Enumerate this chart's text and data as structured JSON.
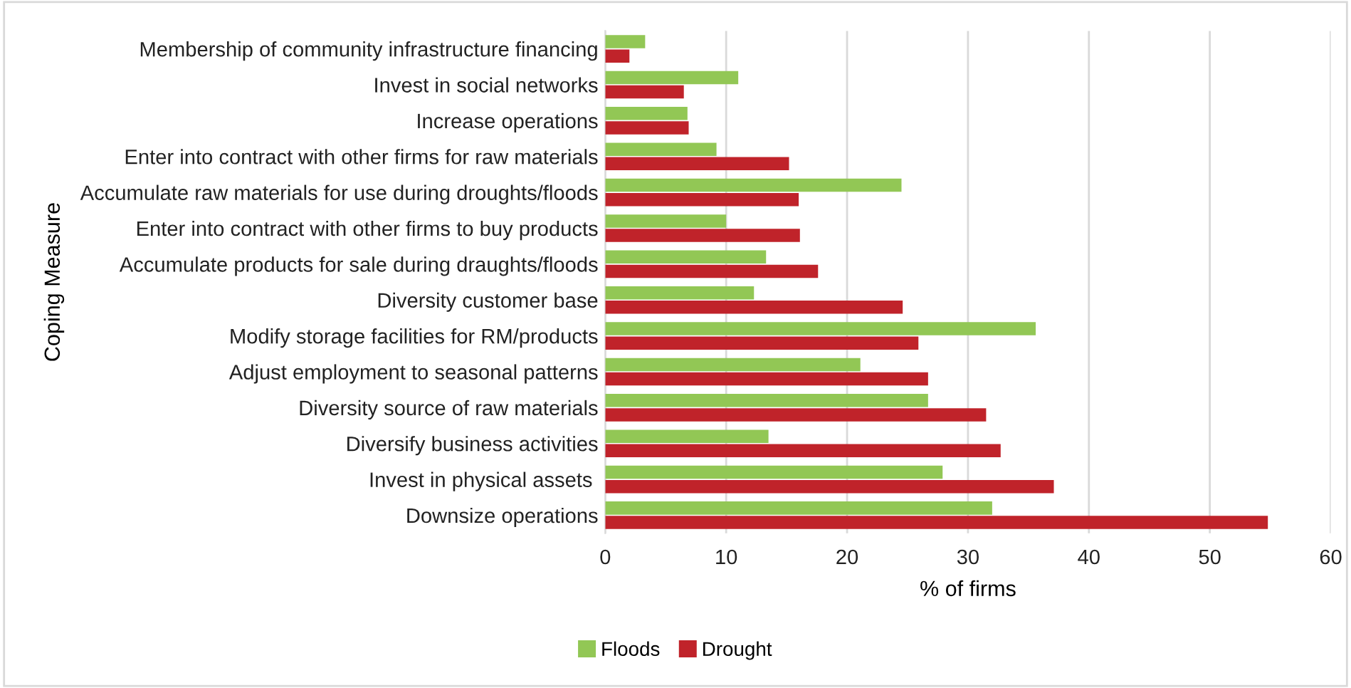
{
  "chart_data": {
    "type": "bar",
    "orientation": "horizontal",
    "xlabel": "% of firms",
    "ylabel": "Coping Measure",
    "categories": [
      "Membership of community infrastructure financing",
      "Invest in social networks",
      "Increase operations",
      "Enter into contract with other firms for raw materials",
      "Accumulate raw materials for use during droughts/floods",
      "Enter into contract with other firms to buy products",
      "Accumulate products for sale during draughts/floods",
      "Diversity customer base",
      "Modify storage facilities for RM/products",
      "Adjust employment to seasonal patterns",
      "Diversity source of raw materials",
      "Diversify business activities",
      "Invest in physical assets ",
      "Downsize operations"
    ],
    "series": [
      {
        "name": "Floods",
        "color": "#92c755",
        "values": [
          3.3,
          11.0,
          6.8,
          9.2,
          24.5,
          10.0,
          13.3,
          12.3,
          35.6,
          21.1,
          26.7,
          13.5,
          27.9,
          32.0
        ]
      },
      {
        "name": "Drought",
        "color": "#c0232a",
        "values": [
          2.0,
          6.5,
          6.9,
          15.2,
          16.0,
          16.1,
          17.6,
          24.6,
          25.9,
          26.7,
          31.5,
          32.7,
          37.1,
          54.8
        ]
      }
    ],
    "xlim": [
      0,
      60
    ],
    "xticks": [
      0,
      10,
      20,
      30,
      40,
      50,
      60
    ],
    "grid": "x",
    "legend": "bottom"
  }
}
